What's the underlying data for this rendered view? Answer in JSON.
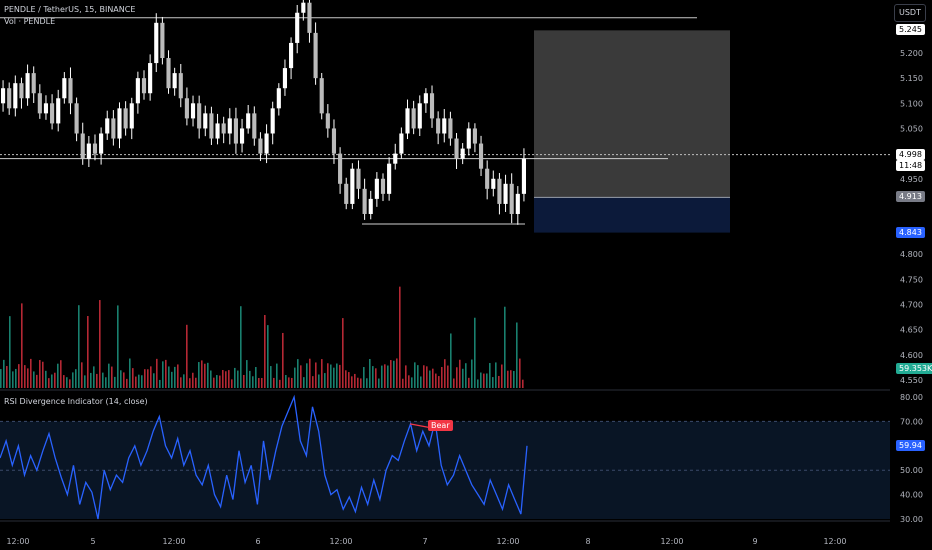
{
  "header": {
    "symbol_line": "PENDLE / TetherUS, 15, BINANCE",
    "volume_line": "Vol · PENDLE",
    "currency_button": "USDT"
  },
  "price_axis": {
    "ticks": [
      "5.200",
      "5.150",
      "5.100",
      "5.050",
      "4.950",
      "4.800",
      "4.750",
      "4.700",
      "4.650",
      "4.600",
      "4.550"
    ],
    "tick_values": [
      5.2,
      5.15,
      5.1,
      5.05,
      4.95,
      4.8,
      4.75,
      4.7,
      4.65,
      4.6,
      4.55
    ],
    "tags": {
      "target": {
        "text": "5.245",
        "value": 5.245,
        "bg": "#ffffff",
        "fg": "#000000"
      },
      "current": {
        "text": "4.998",
        "value": 4.998,
        "bg": "#ffffff",
        "fg": "#000000"
      },
      "countdown": {
        "text": "11:48"
      },
      "entry": {
        "text": "4.913",
        "value": 4.913,
        "bg": "#787b86",
        "fg": "#ffffff"
      },
      "stop": {
        "text": "4.843",
        "value": 4.843,
        "bg": "#2962ff",
        "fg": "#ffffff"
      },
      "volume": {
        "text": "59.353K",
        "bg": "#22ab94",
        "fg": "#ffffff"
      }
    }
  },
  "rsi_panel": {
    "title": "RSI Divergence Indicator (14, close)",
    "ticks": [
      "80.00",
      "70.00",
      "50.00",
      "40.00",
      "30.00"
    ],
    "tick_values": [
      80,
      70,
      50,
      40,
      30
    ],
    "current_tag": {
      "text": "59.94",
      "value": 59.94,
      "bg": "#2962ff",
      "fg": "#ffffff"
    },
    "bear_label": "Bear",
    "bear_color": "#f23645",
    "line_color": "#2962ff"
  },
  "time_axis": {
    "labels": [
      "12:00",
      "5",
      "12:00",
      "6",
      "12:00",
      "7",
      "12:00",
      "8",
      "12:00",
      "9",
      "12:00"
    ]
  },
  "colors": {
    "candle": "#ffffff",
    "volume_up": "#22ab94",
    "volume_down": "#f23645",
    "profit_zone": "#3a3a3a",
    "stop_zone": "#0c1a3a"
  },
  "chart_data": {
    "type": "candlestick",
    "title": "PENDLE / TetherUS, 15, BINANCE",
    "price_range": [
      4.54,
      5.3
    ],
    "key_levels": {
      "upper_horizontal": 5.27,
      "current_price": 4.998,
      "lower_range_line": 4.86,
      "long_position": {
        "entry": 4.913,
        "target": 5.245,
        "stop": 4.843
      }
    },
    "price_path": [
      5.1,
      5.13,
      5.09,
      5.14,
      5.11,
      5.16,
      5.12,
      5.08,
      5.1,
      5.06,
      5.11,
      5.15,
      5.1,
      5.04,
      4.99,
      5.02,
      5.0,
      5.04,
      5.07,
      5.03,
      5.09,
      5.05,
      5.1,
      5.15,
      5.12,
      5.18,
      5.26,
      5.19,
      5.13,
      5.16,
      5.11,
      5.07,
      5.1,
      5.05,
      5.08,
      5.03,
      5.06,
      5.04,
      5.07,
      5.02,
      5.05,
      5.08,
      5.03,
      5.0,
      5.04,
      5.09,
      5.13,
      5.17,
      5.22,
      5.28,
      5.3,
      5.24,
      5.15,
      5.08,
      5.05,
      5.0,
      4.94,
      4.9,
      4.97,
      4.93,
      4.88,
      4.91,
      4.95,
      4.92,
      4.98,
      5.0,
      5.04,
      5.09,
      5.05,
      5.1,
      5.12,
      5.07,
      5.04,
      5.07,
      5.03,
      4.99,
      5.01,
      5.05,
      5.02,
      4.97,
      4.93,
      4.95,
      4.9,
      4.94,
      4.88,
      4.92,
      4.99
    ],
    "rsi_range": [
      29,
      81
    ],
    "rsi": [
      55,
      62,
      52,
      60,
      48,
      56,
      50,
      58,
      65,
      55,
      47,
      40,
      52,
      36,
      45,
      41,
      30,
      50,
      42,
      48,
      45,
      55,
      60,
      52,
      58,
      66,
      72,
      60,
      55,
      63,
      52,
      58,
      48,
      44,
      52,
      40,
      35,
      48,
      38,
      58,
      45,
      52,
      36,
      62,
      46,
      58,
      68,
      74,
      80,
      62,
      56,
      76,
      66,
      48,
      40,
      42,
      34,
      39,
      33,
      43,
      36,
      46,
      38,
      50,
      56,
      54,
      62,
      69,
      58,
      66,
      60,
      70,
      52,
      44,
      48,
      56,
      50,
      44,
      40,
      36,
      46,
      40,
      34,
      44,
      38,
      32,
      60
    ]
  }
}
